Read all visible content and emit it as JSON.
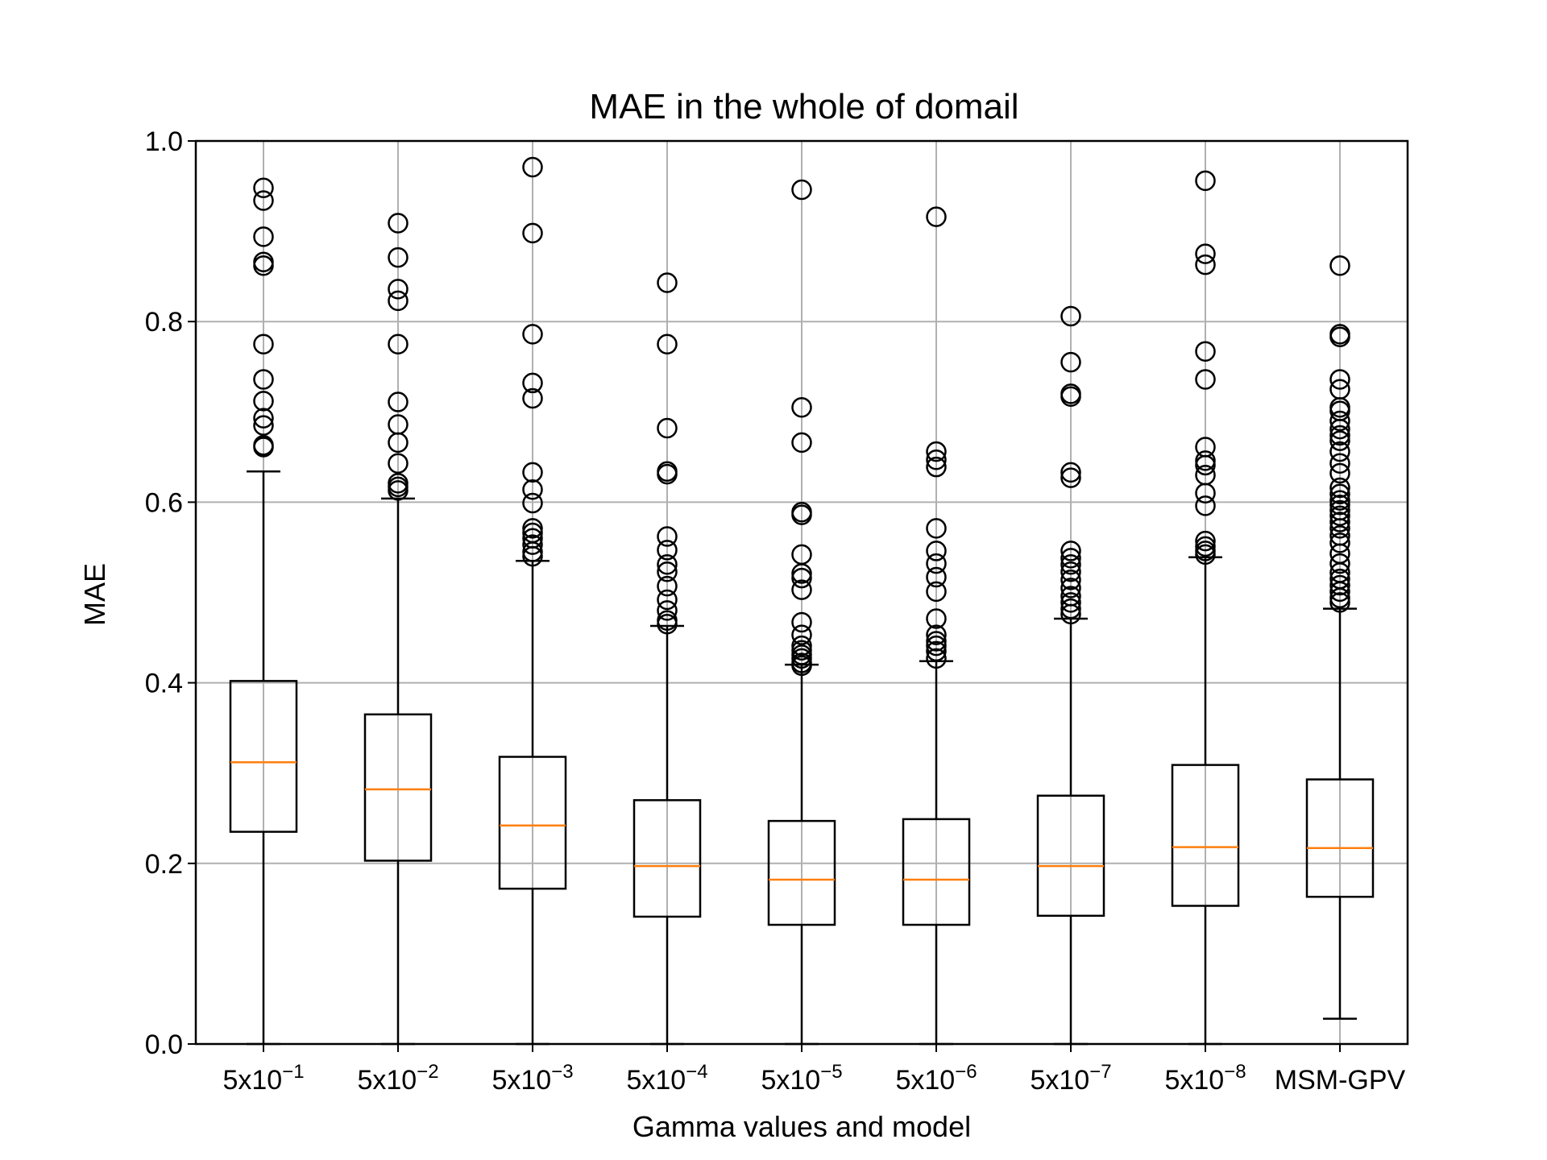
{
  "chart_data": {
    "type": "box",
    "title": "MAE in the whole of domail",
    "xlabel": "Gamma values and model",
    "ylabel": "MAE",
    "ylim": [
      0,
      1.0
    ],
    "yticks": [
      "0.0",
      "0.2",
      "0.4",
      "0.6",
      "0.8",
      "1.0"
    ],
    "grid": true,
    "colors": {
      "box": "#000000",
      "median": "#ff7f0e",
      "grid": "#b0b0b0"
    },
    "categories": [
      {
        "label": "5x10",
        "exp": "−1"
      },
      {
        "label": "5x10",
        "exp": "−2"
      },
      {
        "label": "5x10",
        "exp": "−3"
      },
      {
        "label": "5x10",
        "exp": "−4"
      },
      {
        "label": "5x10",
        "exp": "−5"
      },
      {
        "label": "5x10",
        "exp": "−6"
      },
      {
        "label": "5x10",
        "exp": "−7"
      },
      {
        "label": "5x10",
        "exp": "−8"
      },
      {
        "label": "MSM-GPV",
        "exp": ""
      }
    ],
    "boxes": [
      {
        "whislo": 0.0,
        "q1": 0.235,
        "med": 0.312,
        "q3": 0.402,
        "whishi": 0.634,
        "fliers": [
          0.948,
          0.934,
          0.894,
          0.866,
          0.862,
          0.775,
          0.736,
          0.712,
          0.693,
          0.685,
          0.663,
          0.661
        ]
      },
      {
        "whislo": 0.0,
        "q1": 0.203,
        "med": 0.282,
        "q3": 0.365,
        "whishi": 0.604,
        "fliers": [
          0.909,
          0.871,
          0.836,
          0.823,
          0.775,
          0.711,
          0.686,
          0.666,
          0.643,
          0.621,
          0.617,
          0.613
        ]
      },
      {
        "whislo": 0.0,
        "q1": 0.172,
        "med": 0.242,
        "q3": 0.318,
        "whishi": 0.535,
        "fliers": [
          0.971,
          0.898,
          0.786,
          0.732,
          0.715,
          0.633,
          0.614,
          0.599,
          0.571,
          0.566,
          0.56,
          0.553,
          0.545,
          0.54
        ]
      },
      {
        "whislo": 0.0,
        "q1": 0.141,
        "med": 0.197,
        "q3": 0.27,
        "whishi": 0.463,
        "fliers": [
          0.843,
          0.775,
          0.682,
          0.634,
          0.631,
          0.562,
          0.547,
          0.531,
          0.523,
          0.507,
          0.492,
          0.48,
          0.469,
          0.465
        ]
      },
      {
        "whislo": 0.0,
        "q1": 0.132,
        "med": 0.182,
        "q3": 0.247,
        "whishi": 0.42,
        "fliers": [
          0.946,
          0.705,
          0.666,
          0.589,
          0.586,
          0.542,
          0.521,
          0.516,
          0.503,
          0.467,
          0.453,
          0.441,
          0.436,
          0.431,
          0.427,
          0.422,
          0.419
        ]
      },
      {
        "whislo": 0.0,
        "q1": 0.132,
        "med": 0.182,
        "q3": 0.249,
        "whishi": 0.424,
        "fliers": [
          0.916,
          0.656,
          0.647,
          0.639,
          0.571,
          0.546,
          0.532,
          0.517,
          0.501,
          0.471,
          0.453,
          0.446,
          0.441,
          0.435,
          0.427
        ]
      },
      {
        "whislo": 0.0,
        "q1": 0.142,
        "med": 0.197,
        "q3": 0.275,
        "whishi": 0.471,
        "fliers": [
          0.806,
          0.755,
          0.72,
          0.717,
          0.633,
          0.627,
          0.546,
          0.538,
          0.531,
          0.523,
          0.514,
          0.505,
          0.496,
          0.489,
          0.482,
          0.476
        ]
      },
      {
        "whislo": 0.0,
        "q1": 0.153,
        "med": 0.218,
        "q3": 0.309,
        "whishi": 0.539,
        "fliers": [
          0.956,
          0.875,
          0.863,
          0.767,
          0.736,
          0.661,
          0.646,
          0.641,
          0.63,
          0.61,
          0.596,
          0.557,
          0.551,
          0.546,
          0.542
        ]
      },
      {
        "whislo": 0.028,
        "q1": 0.163,
        "med": 0.217,
        "q3": 0.293,
        "whishi": 0.482,
        "fliers": [
          0.862,
          0.786,
          0.783,
          0.736,
          0.725,
          0.705,
          0.701,
          0.69,
          0.681,
          0.674,
          0.668,
          0.656,
          0.643,
          0.632,
          0.616,
          0.609,
          0.602,
          0.597,
          0.591,
          0.585,
          0.578,
          0.571,
          0.563,
          0.555,
          0.543,
          0.532,
          0.522,
          0.515,
          0.508,
          0.501,
          0.494,
          0.489
        ]
      }
    ]
  }
}
